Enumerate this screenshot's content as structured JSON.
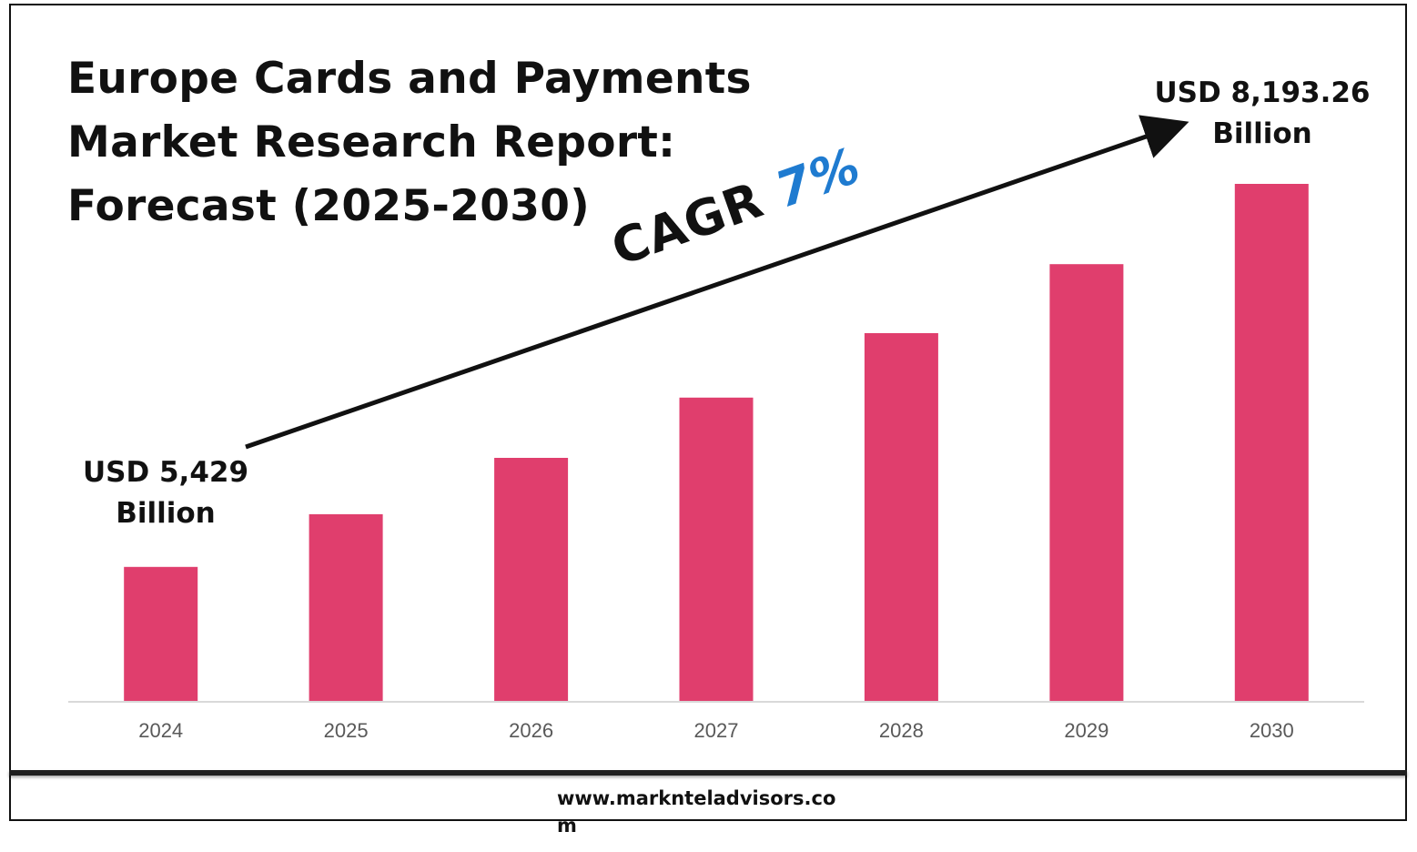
{
  "title_lines": [
    "Europe Cards and Payments",
    "Market Research Report:",
    "Forecast (2025-2030)"
  ],
  "annotations": {
    "start_value": [
      "USD 5,429",
      "Billion"
    ],
    "end_value": [
      "USD 8,193.26",
      "Billion"
    ],
    "cagr_label": "CAGR",
    "cagr_value": "7%"
  },
  "footer_url": "www.marknteladvisors.com",
  "colors": {
    "bar": "#e03e6d",
    "cagr_value": "#1f7bd0",
    "tick_text": "#595959",
    "arrow": "#111111"
  },
  "chart_data": {
    "type": "bar",
    "title": "Europe Cards and Payments Market Research Report: Forecast (2025-2030)",
    "categories": [
      "2024",
      "2025",
      "2026",
      "2027",
      "2028",
      "2029",
      "2030"
    ],
    "values": [
      5429,
      5809,
      6216,
      6651,
      7116,
      7614,
      8193.26
    ],
    "units": "USD Billion",
    "data_labels": {
      "2024": "USD 5,429 Billion",
      "2030": "USD 8,193.26 Billion"
    },
    "ylim": [
      4462,
      8193.26
    ],
    "xlabel": "",
    "ylabel": "",
    "grid": false,
    "legend": "none",
    "trend_arrow": {
      "from": "2024",
      "to": "2030",
      "label": "CAGR 7%"
    }
  }
}
